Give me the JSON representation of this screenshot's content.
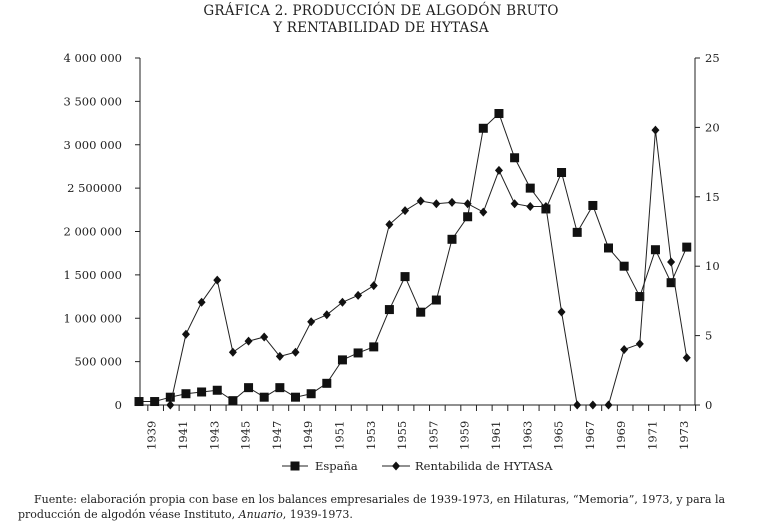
{
  "chart_data": {
    "type": "line",
    "title": [
      "GRÁFICA 2. PRODUCCIÓN DE ALGODÓN BRUTO",
      "Y RENTABILIDAD DE HYTASA"
    ],
    "x": [
      1938,
      1939,
      1940,
      1941,
      1942,
      1943,
      1944,
      1945,
      1946,
      1947,
      1948,
      1949,
      1950,
      1951,
      1952,
      1953,
      1954,
      1955,
      1956,
      1957,
      1958,
      1959,
      1960,
      1961,
      1962,
      1963,
      1964,
      1965,
      1966,
      1967,
      1968,
      1969,
      1970,
      1971,
      1972,
      1973
    ],
    "x_tick_labels": [
      "1939",
      "1941",
      "1943",
      "1945",
      "1947",
      "1949",
      "1951",
      "1953",
      "1955",
      "1957",
      "1959",
      "1961",
      "1963",
      "1965",
      "1967",
      "1969",
      "1971",
      "1973"
    ],
    "y_left": {
      "range": [
        0,
        4000000
      ],
      "tick_labels": [
        "0",
        "500 000",
        "1 000 000",
        "1 500 000",
        "2 000 000",
        "2 500000",
        "3 000 000",
        "3 500 000",
        "4 000 000"
      ]
    },
    "y_right": {
      "range": [
        0,
        25
      ],
      "tick_labels": [
        "0",
        "5",
        "10",
        "15",
        "20",
        "25"
      ]
    },
    "series": [
      {
        "name": "España",
        "axis": "left",
        "marker": "square",
        "values": [
          40000,
          40000,
          90000,
          130000,
          150000,
          170000,
          50000,
          200000,
          90000,
          200000,
          90000,
          130000,
          250000,
          520000,
          600000,
          670000,
          1100000,
          1480000,
          1070000,
          1210000,
          1910000,
          2170000,
          3190000,
          3360000,
          2850000,
          2500000,
          2260000,
          2680000,
          1990000,
          2300000,
          1810000,
          1600000,
          1250000,
          1790000,
          1410000,
          1820000
        ]
      },
      {
        "name": "Rentabilida de HYTASA",
        "axis": "right",
        "marker": "diamond",
        "values": [
          null,
          null,
          0,
          5.1,
          7.4,
          9.0,
          3.8,
          4.6,
          4.9,
          3.5,
          3.8,
          6.0,
          6.5,
          7.4,
          7.9,
          8.6,
          13.0,
          14.0,
          14.7,
          14.5,
          14.6,
          14.5,
          13.9,
          16.9,
          14.5,
          14.3,
          14.3,
          6.7,
          0,
          0,
          0,
          4.0,
          4.4,
          19.8,
          10.3,
          3.4
        ]
      }
    ],
    "legend_placement": "bottom",
    "grid": false
  },
  "legend": {
    "s1": "España",
    "s2": "Rentabilida de HYTASA"
  },
  "footnote": {
    "part1": "Fuente: elaboración propia con base en los balances empresariales de 1939-1973, en Hilaturas, “Memoria”, 1973, y para la producción de algodón véase Instituto, ",
    "italic": "Anuario",
    "part2": ", 1939-1973."
  }
}
